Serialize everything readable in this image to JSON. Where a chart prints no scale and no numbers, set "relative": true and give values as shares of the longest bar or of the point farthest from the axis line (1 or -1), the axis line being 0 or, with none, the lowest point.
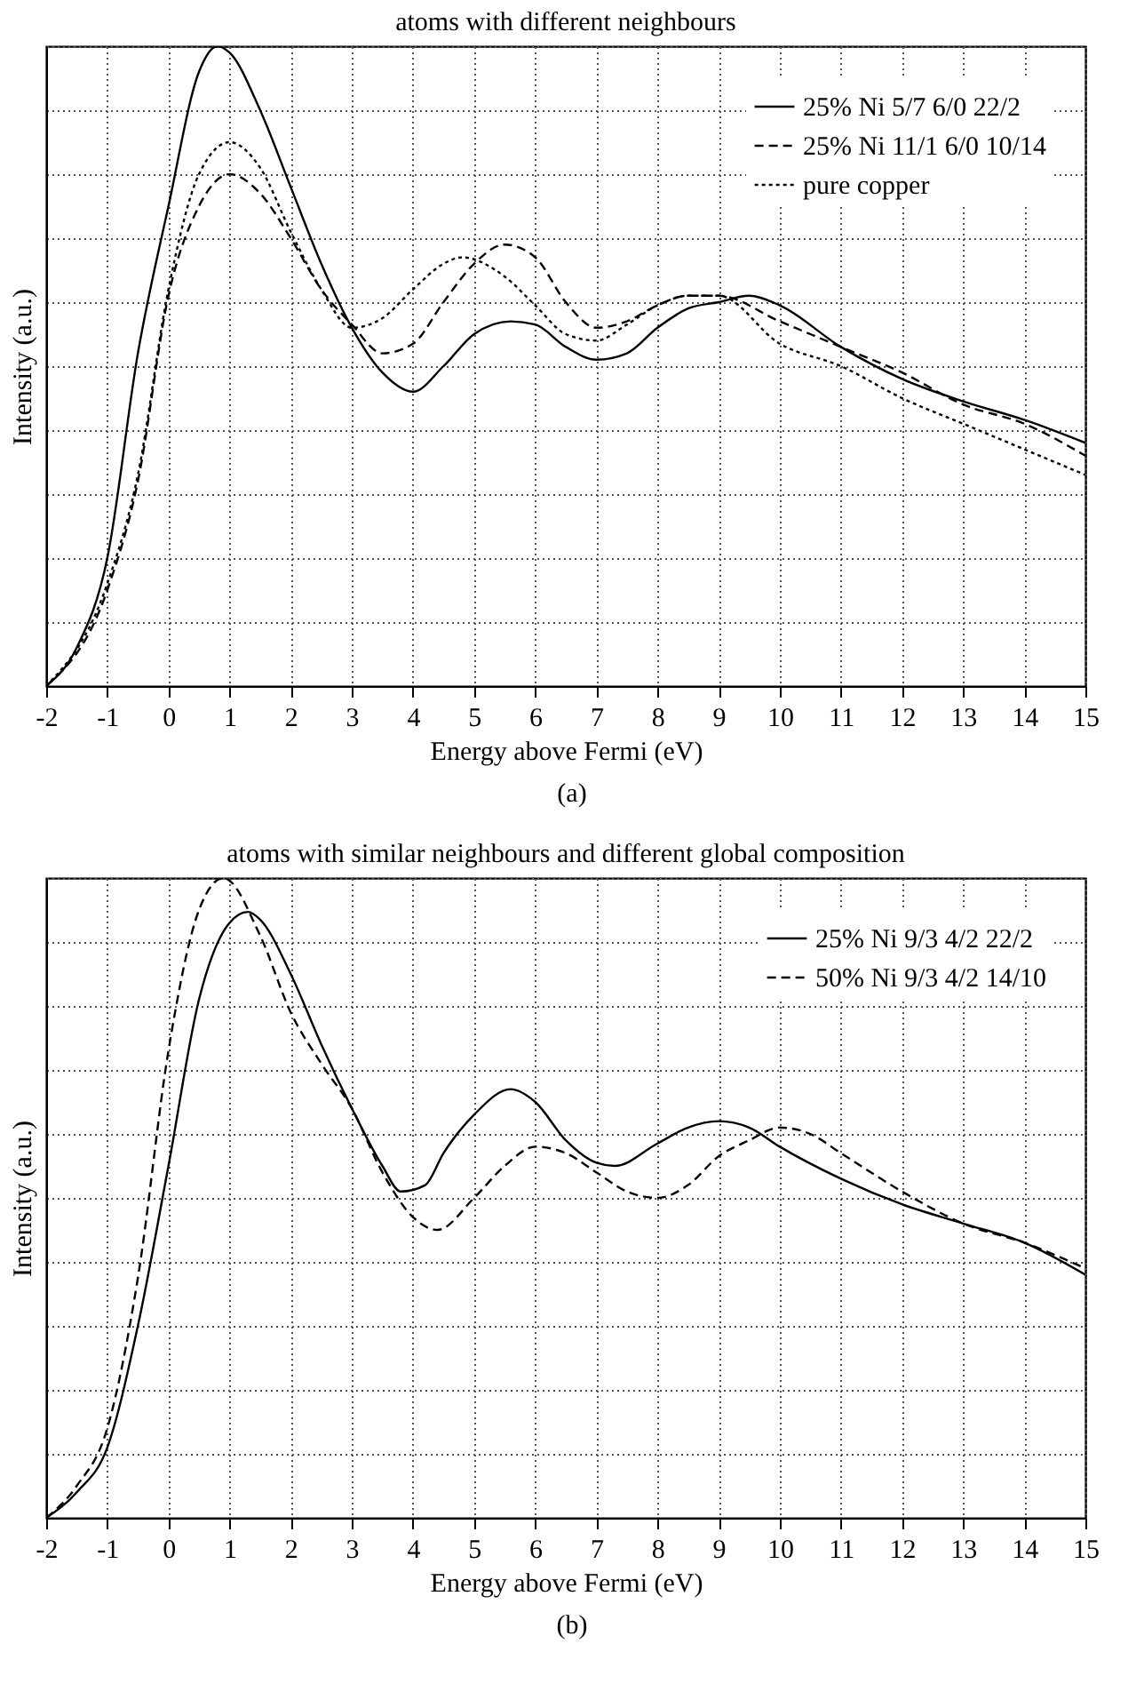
{
  "chart_data": [
    {
      "type": "line",
      "title": "atoms with different neighbours",
      "xlabel": "Energy above Fermi (eV)",
      "ylabel": "Intensity (a.u.)",
      "relative": true,
      "xlim": [
        -2,
        15
      ],
      "xticks": [
        -2,
        -1,
        0,
        1,
        2,
        3,
        4,
        5,
        6,
        7,
        8,
        9,
        10,
        11,
        12,
        13,
        14,
        15
      ],
      "grid": true,
      "legend": "top right",
      "annotations": [
        "(a)"
      ],
      "series": [
        {
          "name": "25% Ni 5/7 6/0 22/2",
          "color": "#000000",
          "line_style": "solid",
          "x": [
            -2,
            -1.5,
            -1,
            -0.5,
            0,
            0.5,
            0.8,
            1,
            1.5,
            2,
            2.5,
            3,
            3.5,
            4,
            4.5,
            5,
            5.6,
            6,
            6.5,
            7,
            7.5,
            8,
            8.5,
            9,
            9.5,
            10,
            11,
            12,
            13,
            14,
            15
          ],
          "values": [
            0,
            0.06,
            0.2,
            0.52,
            0.75,
            0.96,
            1.0,
            0.99,
            0.9,
            0.78,
            0.66,
            0.56,
            0.49,
            0.46,
            0.5,
            0.55,
            0.57,
            0.565,
            0.53,
            0.51,
            0.52,
            0.56,
            0.59,
            0.6,
            0.61,
            0.595,
            0.53,
            0.48,
            0.445,
            0.416,
            0.38
          ]
        },
        {
          "name": "25% Ni 11/1 6/0 10/14",
          "color": "#000000",
          "line_style": "dashed",
          "x": [
            -2,
            -1,
            -0.5,
            0,
            0.5,
            1,
            1.5,
            2,
            2.5,
            3,
            3.5,
            4,
            4.5,
            5,
            5.5,
            6,
            6.5,
            7,
            7.5,
            8,
            8.5,
            9,
            10,
            11,
            12,
            13,
            14,
            15
          ],
          "values": [
            0,
            0.15,
            0.32,
            0.61,
            0.75,
            0.8,
            0.77,
            0.7,
            0.62,
            0.565,
            0.52,
            0.535,
            0.6,
            0.66,
            0.69,
            0.67,
            0.6,
            0.56,
            0.57,
            0.595,
            0.61,
            0.61,
            0.57,
            0.53,
            0.49,
            0.44,
            0.41,
            0.36
          ]
        },
        {
          "name": "pure copper",
          "color": "#000000",
          "line_style": "dotted",
          "x": [
            -2,
            -1,
            -0.5,
            0,
            0.5,
            1,
            1.5,
            2,
            2.5,
            3,
            3.5,
            4,
            4.5,
            4.8,
            5.5,
            6,
            6.5,
            7,
            7.5,
            8,
            8.5,
            9,
            10,
            11,
            12,
            13,
            14,
            15
          ],
          "values": [
            0,
            0.16,
            0.33,
            0.62,
            0.8,
            0.85,
            0.81,
            0.71,
            0.62,
            0.56,
            0.575,
            0.62,
            0.66,
            0.67,
            0.64,
            0.595,
            0.55,
            0.54,
            0.565,
            0.595,
            0.61,
            0.61,
            0.535,
            0.5,
            0.45,
            0.41,
            0.37,
            0.33
          ]
        }
      ]
    },
    {
      "type": "line",
      "title": "atoms with similar neighbours and different global composition",
      "xlabel": "Energy above Fermi (eV)",
      "ylabel": "Intensity (a.u.)",
      "relative": true,
      "xlim": [
        -2,
        15
      ],
      "xticks": [
        -2,
        -1,
        0,
        1,
        2,
        3,
        4,
        5,
        6,
        7,
        8,
        9,
        10,
        11,
        12,
        13,
        14,
        15
      ],
      "grid": true,
      "legend": "top right",
      "annotations": [
        "(b)"
      ],
      "series": [
        {
          "name": "25% Ni 9/3 4/2 22/2",
          "color": "#000000",
          "line_style": "solid",
          "x": [
            -2,
            -1.5,
            -1,
            -0.5,
            0,
            0.5,
            1,
            1.3,
            1.5,
            2,
            2.5,
            3,
            3.5,
            3.8,
            4.2,
            4.5,
            5,
            5.6,
            6,
            6.5,
            7,
            7.3,
            8,
            8.5,
            9,
            9.5,
            10,
            11,
            12,
            13,
            14,
            15
          ],
          "values": [
            0,
            0.04,
            0.11,
            0.3,
            0.55,
            0.81,
            0.93,
            0.947,
            0.935,
            0.85,
            0.74,
            0.64,
            0.55,
            0.51,
            0.52,
            0.57,
            0.63,
            0.67,
            0.65,
            0.59,
            0.555,
            0.55,
            0.585,
            0.61,
            0.62,
            0.61,
            0.58,
            0.53,
            0.49,
            0.46,
            0.43,
            0.38
          ]
        },
        {
          "name": "50% Ni 9/3 4/2 14/10",
          "color": "#000000",
          "line_style": "dashed",
          "x": [
            -2,
            -1.5,
            -1,
            -0.5,
            0,
            0.5,
            0.9,
            1.5,
            2,
            2.5,
            3,
            3.5,
            4,
            4.4,
            5,
            5.5,
            6,
            6.5,
            7,
            7.5,
            8,
            8.5,
            9,
            9.5,
            10,
            10.5,
            11,
            12,
            13,
            14,
            15
          ],
          "values": [
            0,
            0.05,
            0.14,
            0.375,
            0.73,
            0.95,
            1.0,
            0.91,
            0.79,
            0.71,
            0.64,
            0.54,
            0.47,
            0.45,
            0.5,
            0.55,
            0.58,
            0.57,
            0.54,
            0.51,
            0.5,
            0.52,
            0.565,
            0.59,
            0.61,
            0.6,
            0.57,
            0.51,
            0.46,
            0.43,
            0.39
          ]
        }
      ]
    }
  ]
}
